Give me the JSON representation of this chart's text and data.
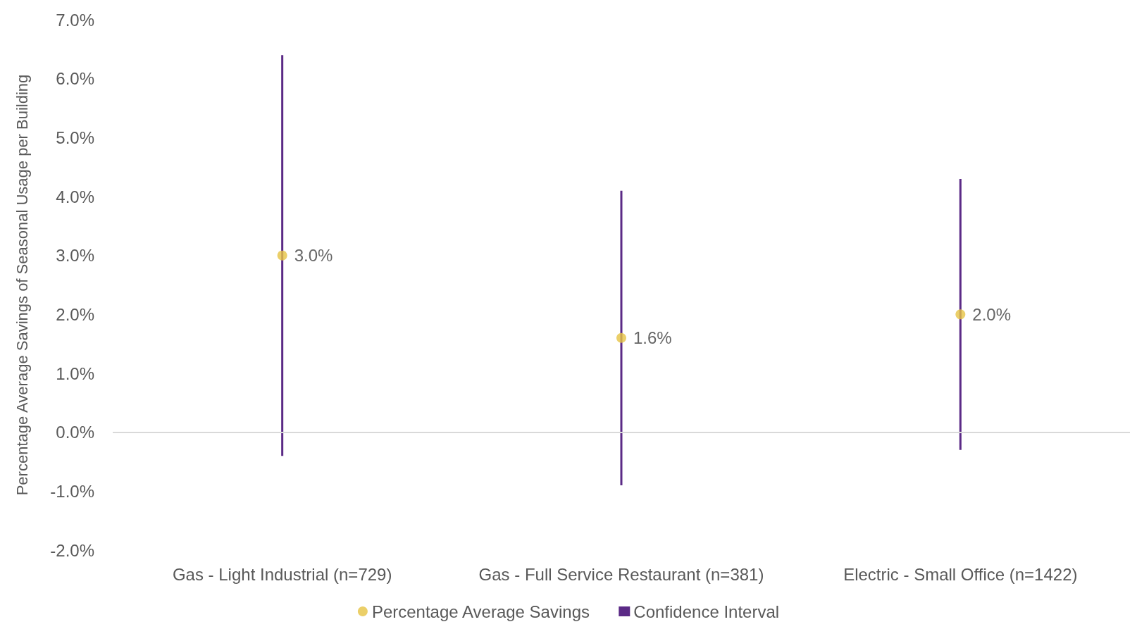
{
  "chart_data": {
    "type": "scatter",
    "ylabel": "Percentage Average Savings of Seasonal Usage per Building",
    "categories": [
      "Gas - Light Industrial (n=729)",
      "Gas - Full Service Restaurant (n=381)",
      "Electric - Small Office (n=1422)"
    ],
    "series": [
      {
        "name": "Percentage Average Savings",
        "color": "#e6c343",
        "values": [
          3.0,
          1.6,
          2.0
        ],
        "value_labels": [
          "3.0%",
          "1.6%",
          "2.0%"
        ]
      },
      {
        "name": "Confidence Interval",
        "type": "bar",
        "color": "#5b2a86",
        "base": [
          -0.4,
          -0.9,
          -0.3
        ],
        "values": [
          6.8,
          5.0,
          4.6
        ]
      }
    ],
    "ylim": [
      -2,
      7
    ],
    "yticks": [
      {
        "value": -2,
        "label": "-2.0%"
      },
      {
        "value": -1,
        "label": "-1.0%"
      },
      {
        "value": 0,
        "label": "0.0%"
      },
      {
        "value": 1,
        "label": "1.0%"
      },
      {
        "value": 2,
        "label": "2.0%"
      },
      {
        "value": 3,
        "label": "3.0%"
      },
      {
        "value": 4,
        "label": "4.0%"
      },
      {
        "value": 5,
        "label": "5.0%"
      },
      {
        "value": 6,
        "label": "6.0%"
      },
      {
        "value": 7,
        "label": "7.0%"
      }
    ],
    "ref_lines": [
      {
        "axis": "y",
        "value": 0,
        "color": "#d9d9d9"
      }
    ],
    "grid": false,
    "legend": "bottom",
    "marker": "circle"
  }
}
